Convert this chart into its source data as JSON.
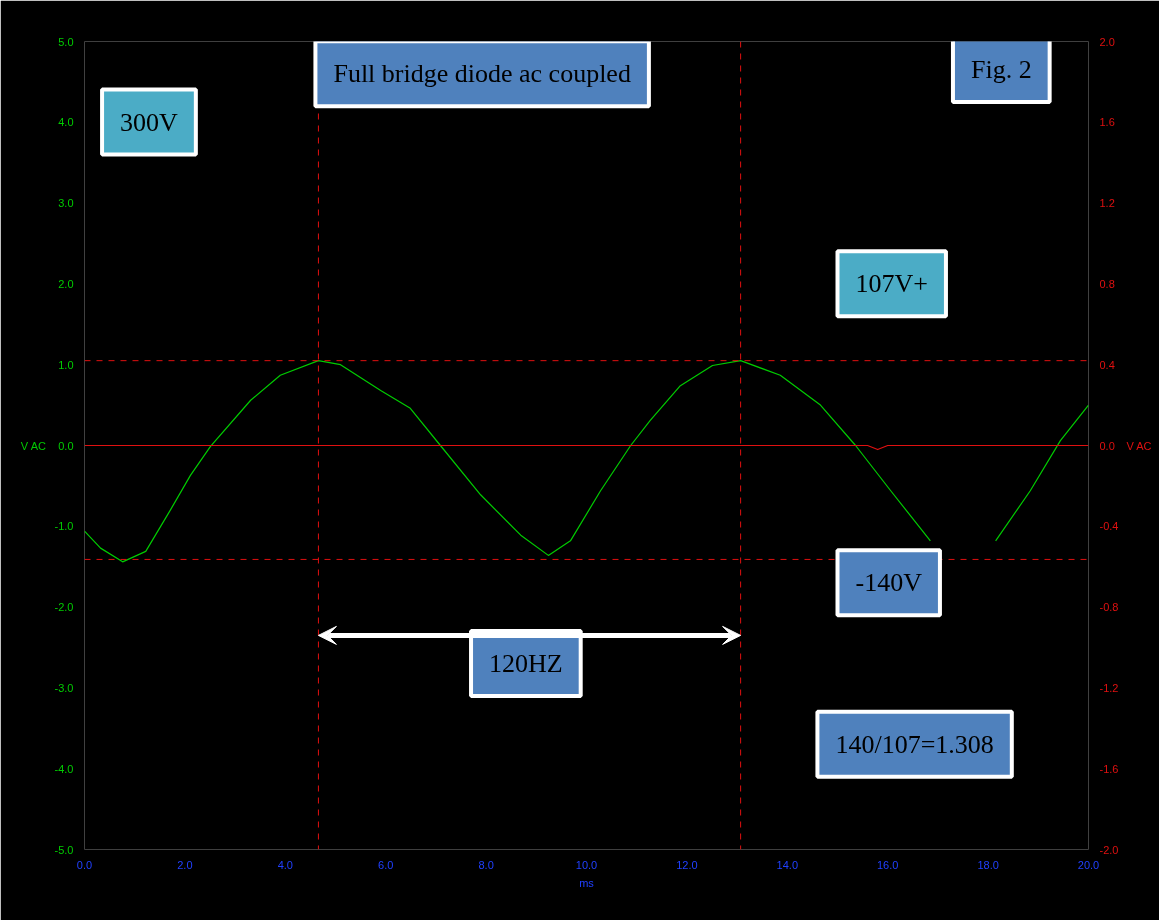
{
  "chart_data": {
    "type": "line",
    "xlabel": "ms",
    "ylabel": "V AC",
    "y2label": "V AC",
    "xlim": [
      0,
      20
    ],
    "ylim": [
      -5,
      5
    ],
    "y2lim": [
      -2,
      2
    ],
    "xticks": [
      {
        "value": 0,
        "label": "0.0"
      },
      {
        "value": 2,
        "label": "2.0"
      },
      {
        "value": 4,
        "label": "4.0"
      },
      {
        "value": 6,
        "label": "6.0"
      },
      {
        "value": 8,
        "label": "8.0"
      },
      {
        "value": 10,
        "label": "10.0"
      },
      {
        "value": 12,
        "label": "12.0"
      },
      {
        "value": 14,
        "label": "14.0"
      },
      {
        "value": 16,
        "label": "16.0"
      },
      {
        "value": 18,
        "label": "18.0"
      },
      {
        "value": 20,
        "label": "20.0"
      }
    ],
    "yticks": [
      {
        "value": -5,
        "label": "-5.0"
      },
      {
        "value": -4,
        "label": "-4.0"
      },
      {
        "value": -3,
        "label": "-3.0"
      },
      {
        "value": -2,
        "label": "-2.0"
      },
      {
        "value": -1,
        "label": "-1.0"
      },
      {
        "value": 0,
        "label": "0.0"
      },
      {
        "value": 1,
        "label": "1.0"
      },
      {
        "value": 2,
        "label": "2.0"
      },
      {
        "value": 3,
        "label": "3.0"
      },
      {
        "value": 4,
        "label": "4.0"
      },
      {
        "value": 5,
        "label": "5.0"
      }
    ],
    "y2ticks": [
      {
        "value": -2,
        "label": "-2.0"
      },
      {
        "value": -1.6,
        "label": "-1.6"
      },
      {
        "value": -1.2,
        "label": "-1.2"
      },
      {
        "value": -0.8,
        "label": "-0.8"
      },
      {
        "value": -0.4,
        "label": "-0.4"
      },
      {
        "value": 0,
        "label": "0.0"
      },
      {
        "value": 0.4,
        "label": "0.4"
      },
      {
        "value": 0.8,
        "label": "0.8"
      },
      {
        "value": 1.2,
        "label": "1.2"
      },
      {
        "value": 1.6,
        "label": "1.6"
      },
      {
        "value": 2,
        "label": "2.0"
      }
    ],
    "grid": false,
    "marker": "none",
    "line_style": "solid",
    "series": [
      {
        "color": "#00cc00",
        "x": [
          0,
          0.32,
          0.76,
          1.22,
          1.71,
          2.11,
          2.51,
          3.31,
          3.9,
          4.66,
          5.1,
          5.9,
          6.49,
          7.09,
          7.89,
          8.69,
          9.24,
          9.68,
          10.28,
          10.88,
          11.27,
          11.87,
          12.51,
          13.07,
          13.86,
          14.66,
          15.36,
          16.06,
          16.85,
          17.3,
          17.7,
          18.15,
          18.84,
          19.44,
          20
        ],
        "values": [
          -1.06,
          -1.27,
          -1.44,
          -1.31,
          -0.8,
          -0.37,
          -0.01,
          0.56,
          0.87,
          1.05,
          1.0,
          0.68,
          0.46,
          0.0,
          -0.61,
          -1.11,
          -1.36,
          -1.18,
          -0.56,
          0.0,
          0.31,
          0.74,
          0.99,
          1.05,
          0.87,
          0.5,
          0.0,
          -0.56,
          -1.18,
          null,
          null,
          -1.18,
          -0.56,
          0.06,
          0.5
        ]
      },
      {
        "color": "#e01010",
        "axis": "y2",
        "x": [
          0,
          15.6,
          15.8,
          16.0,
          20
        ],
        "values": [
          0,
          0,
          -0.02,
          0,
          0
        ]
      }
    ],
    "ref_lines": [
      {
        "axis": "x",
        "value": 4.66,
        "color": "#e01010",
        "line_style": "dashed"
      },
      {
        "axis": "x",
        "value": 13.07,
        "color": "#e01010",
        "line_style": "dashed"
      },
      {
        "axis": "y",
        "value": 1.05,
        "color": "#e01010",
        "line_style": "dashed"
      },
      {
        "axis": "y",
        "value": -1.41,
        "color": "#e01010",
        "line_style": "dashed"
      }
    ],
    "annotations": [
      "Full bridge diode ac coupled",
      "Fig. 2",
      "300V",
      "107V+",
      "-140V",
      "120HZ",
      "140/107=1.308"
    ]
  }
}
